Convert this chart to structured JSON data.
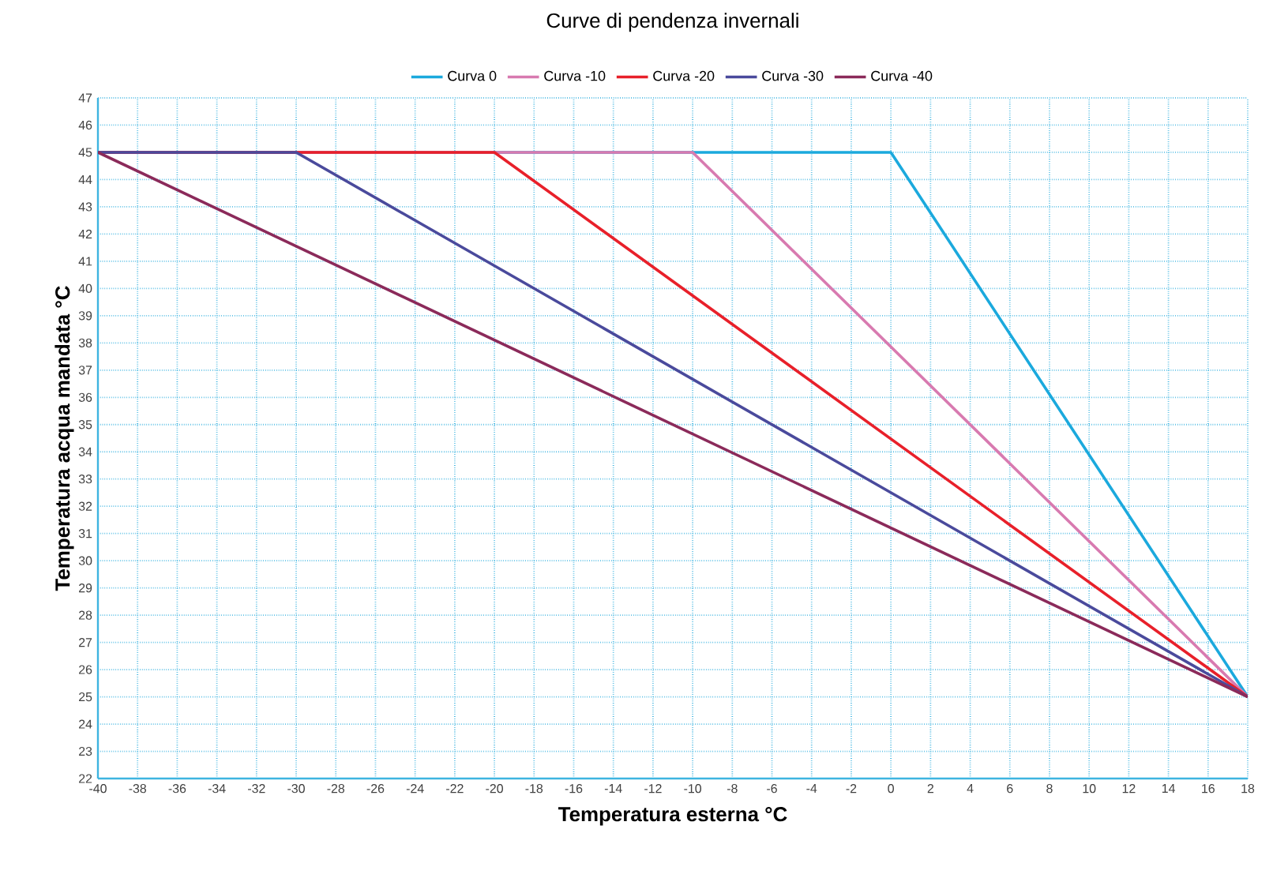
{
  "chart_data": {
    "type": "line",
    "title": "Curve di pendenza invernali",
    "xlabel": "Temperatura esterna °C",
    "ylabel": "Temperatura acqua mandata °C",
    "xlim": [
      -40,
      18
    ],
    "ylim": [
      22,
      47
    ],
    "xticks": [
      -40,
      -38,
      -36,
      -34,
      -32,
      -30,
      -28,
      -26,
      -24,
      -22,
      -20,
      -18,
      -16,
      -14,
      -12,
      -10,
      -8,
      -6,
      -4,
      -2,
      0,
      2,
      4,
      6,
      8,
      10,
      12,
      14,
      16,
      18
    ],
    "yticks": [
      22,
      23,
      24,
      25,
      26,
      27,
      28,
      29,
      30,
      31,
      32,
      33,
      34,
      35,
      36,
      37,
      38,
      39,
      40,
      41,
      42,
      43,
      44,
      45,
      46,
      47
    ],
    "grid": true,
    "legend": "top",
    "line_style": "solid",
    "series": [
      {
        "name": "Curva 0",
        "color": "#1ba9dd",
        "x": [
          -40,
          0,
          18
        ],
        "values": [
          45,
          45,
          25
        ]
      },
      {
        "name": "Curva -10",
        "color": "#d87ab0",
        "x": [
          -40,
          -10,
          18
        ],
        "values": [
          45,
          45,
          25
        ]
      },
      {
        "name": "Curva -20",
        "color": "#e8202a",
        "x": [
          -40,
          -20,
          18
        ],
        "values": [
          45,
          45,
          25
        ]
      },
      {
        "name": "Curva -30",
        "color": "#4a4a9c",
        "x": [
          -40,
          -30,
          18
        ],
        "values": [
          45,
          45,
          25
        ]
      },
      {
        "name": "Curva -40",
        "color": "#8b2a5a",
        "x": [
          -40,
          18
        ],
        "values": [
          45,
          25
        ]
      }
    ]
  }
}
